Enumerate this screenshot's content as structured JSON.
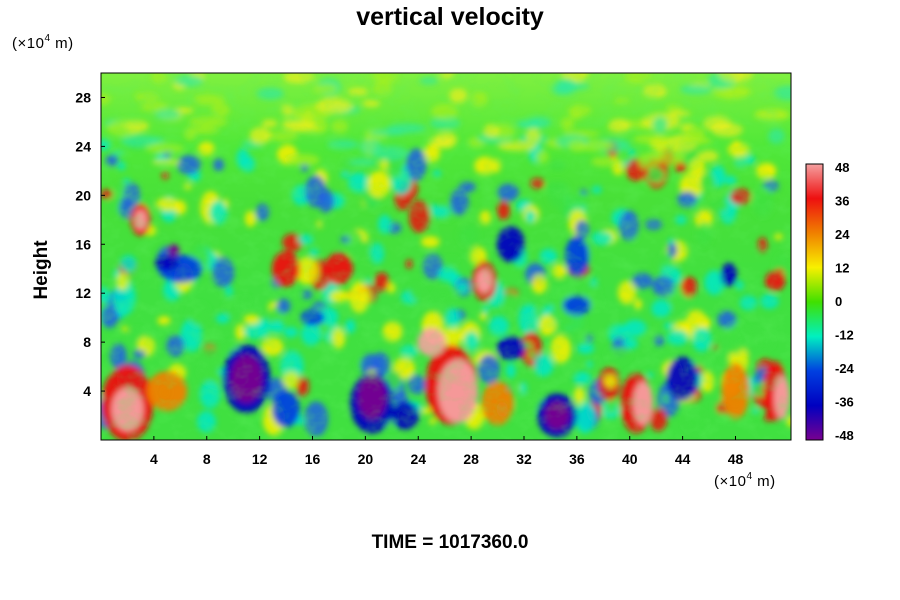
{
  "chart_data": {
    "type": "heatmap",
    "title": "vertical velocity",
    "ylabel": "Height",
    "y_unit": {
      "prefix": "(×10",
      "exp": "4",
      "suffix": " m)"
    },
    "x_unit": {
      "prefix": "(×10",
      "exp": "4",
      "suffix": " m)"
    },
    "xlim": [
      0,
      52.2
    ],
    "ylim": [
      0,
      30
    ],
    "x_ticks": [
      4,
      8,
      12,
      16,
      20,
      24,
      28,
      32,
      36,
      40,
      44,
      48
    ],
    "y_ticks": [
      4,
      8,
      12,
      16,
      20,
      24,
      28
    ],
    "colorbar": {
      "min": -48,
      "max": 48,
      "labels": [
        48,
        36,
        24,
        12,
        0,
        -12,
        -24,
        -36,
        -48
      ],
      "colors": [
        "#f5a0a0",
        "#ee1010",
        "#f08000",
        "#f8f000",
        "#40e000",
        "#00f0c0",
        "#0040e0",
        "#0000c0",
        "#780090"
      ]
    },
    "grid": false,
    "footer": "TIME = 1017360.0"
  }
}
